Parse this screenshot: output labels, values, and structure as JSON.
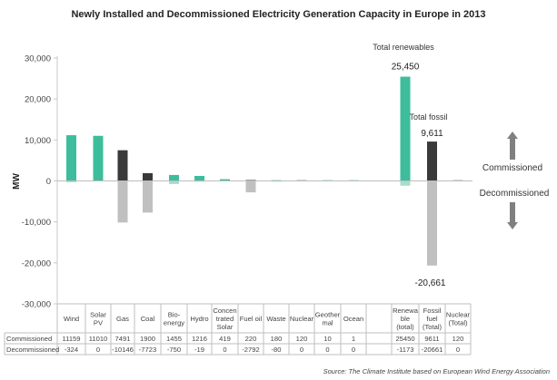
{
  "chart_data": {
    "type": "bar",
    "title": "Newly Installed and Decommissioned Electricity Generation Capacity in Europe in 2013",
    "xlabel": "",
    "ylabel": "MW",
    "ylim": [
      -30000,
      30000
    ],
    "yticks": [
      30000,
      20000,
      10000,
      0,
      -10000,
      -20000,
      -30000
    ],
    "ytick_labels": [
      "30,000",
      "20,000",
      "10,000",
      "0",
      "-10,000",
      "-20,000",
      "-30,000"
    ],
    "grid": false,
    "categories": [
      "Wind",
      "Solar PV",
      "Gas",
      "Coal",
      "Bio-energy",
      "Hydro",
      "Concentrated Solar",
      "Fuel oil",
      "Waste",
      "Nuclear",
      "Geothermal",
      "Ocean",
      "",
      "Renewable (total)",
      "Fossil fuel (Total)",
      "Nuclear (Total)"
    ],
    "category_header_lines": [
      [
        "Wind"
      ],
      [
        "Solar",
        "PV"
      ],
      [
        "Gas"
      ],
      [
        "Coal"
      ],
      [
        "Bio-",
        "energy"
      ],
      [
        "Hydro"
      ],
      [
        "Concen",
        "trated",
        "Solar"
      ],
      [
        "Fuel oil"
      ],
      [
        "Waste"
      ],
      [
        "Nuclear"
      ],
      [
        "Geother",
        "mal"
      ],
      [
        "Ocean"
      ],
      [],
      [
        "Renewa",
        "ble",
        "(total)"
      ],
      [
        "Fossil",
        "fuel",
        "(Total)"
      ],
      [
        "Nuclear",
        "(Total)"
      ]
    ],
    "category_type": [
      "renewable",
      "renewable",
      "fossil",
      "fossil",
      "renewable",
      "renewable",
      "renewable",
      "fossil",
      "renewable",
      "nuclear",
      "renewable",
      "renewable",
      "blank",
      "renewable",
      "fossil",
      "nuclear"
    ],
    "series": [
      {
        "name": "Commissioned",
        "values": [
          11159,
          11010,
          7491,
          1900,
          1455,
          1216,
          419,
          220,
          180,
          120,
          10,
          1,
          null,
          25450,
          9611,
          120
        ]
      },
      {
        "name": "Decommissioned",
        "values": [
          -324,
          0,
          -10146,
          -7723,
          -750,
          -19,
          0,
          -2792,
          -80,
          0,
          0,
          0,
          null,
          -1173,
          -20661,
          0
        ]
      }
    ],
    "table_values": {
      "Commissioned": [
        "11159",
        "11010",
        "7491",
        "1900",
        "1455",
        "1216",
        "419",
        "220",
        "180",
        "120",
        "10",
        "1",
        "",
        "25450",
        "9611",
        "120"
      ],
      "Decommissioned": [
        "-324",
        "0",
        "-10146",
        "-7723",
        "-750",
        "-19",
        "0",
        "-2792",
        "-80",
        "0",
        "0",
        "0",
        "",
        "-1173",
        "-20661",
        "0"
      ]
    },
    "annotations": [
      {
        "text": "Total renewables",
        "category": "Renewable (total)"
      },
      {
        "text": "25,450",
        "category": "Renewable (total)"
      },
      {
        "text": "Total fossil",
        "category": "Fossil fuel (Total)"
      },
      {
        "text": "9,611",
        "category": "Fossil fuel (Total)"
      },
      {
        "text": "-20,661",
        "category": "Fossil fuel (Total)"
      }
    ],
    "side_labels": {
      "up": "Commissioned",
      "down": "Decommissioned"
    },
    "colors": {
      "renewable_commissioned": "#3dbd9b",
      "fossil_commissioned": "#3a3a3a",
      "nuclear_commissioned": "#6a6a6a",
      "decommissioned": "#c0c0c0",
      "renewable_decommissioned": "#a8dccb",
      "arrow": "#808080",
      "axis": "#c8c8c8"
    }
  },
  "source": "Source: The Climate Institute based on European Wind Energy Association"
}
